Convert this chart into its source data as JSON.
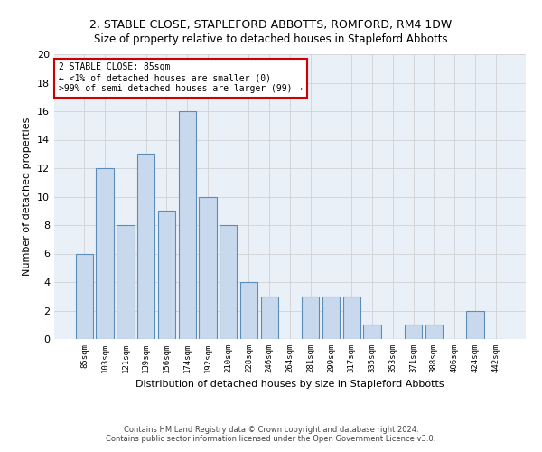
{
  "title1": "2, STABLE CLOSE, STAPLEFORD ABBOTTS, ROMFORD, RM4 1DW",
  "title2": "Size of property relative to detached houses in Stapleford Abbotts",
  "xlabel": "Distribution of detached houses by size in Stapleford Abbotts",
  "ylabel": "Number of detached properties",
  "categories": [
    "85sqm",
    "103sqm",
    "121sqm",
    "139sqm",
    "156sqm",
    "174sqm",
    "192sqm",
    "210sqm",
    "228sqm",
    "246sqm",
    "264sqm",
    "281sqm",
    "299sqm",
    "317sqm",
    "335sqm",
    "353sqm",
    "371sqm",
    "388sqm",
    "406sqm",
    "424sqm",
    "442sqm"
  ],
  "values": [
    6,
    12,
    8,
    13,
    9,
    16,
    10,
    8,
    4,
    3,
    0,
    3,
    3,
    3,
    1,
    0,
    1,
    1,
    0,
    2,
    0
  ],
  "bar_color": "#c9d9ed",
  "bar_edge_color": "#5b8db8",
  "annotation_line1": "2 STABLE CLOSE: 85sqm",
  "annotation_line2": "← <1% of detached houses are smaller (0)",
  "annotation_line3": ">99% of semi-detached houses are larger (99) →",
  "annotation_box_color": "#ffffff",
  "annotation_box_edge_color": "#cc0000",
  "ylim": [
    0,
    20
  ],
  "yticks": [
    0,
    2,
    4,
    6,
    8,
    10,
    12,
    14,
    16,
    18,
    20
  ],
  "grid_color": "#cccccc",
  "background_color": "#eaf0f8",
  "footer1": "Contains HM Land Registry data © Crown copyright and database right 2024.",
  "footer2": "Contains public sector information licensed under the Open Government Licence v3.0."
}
